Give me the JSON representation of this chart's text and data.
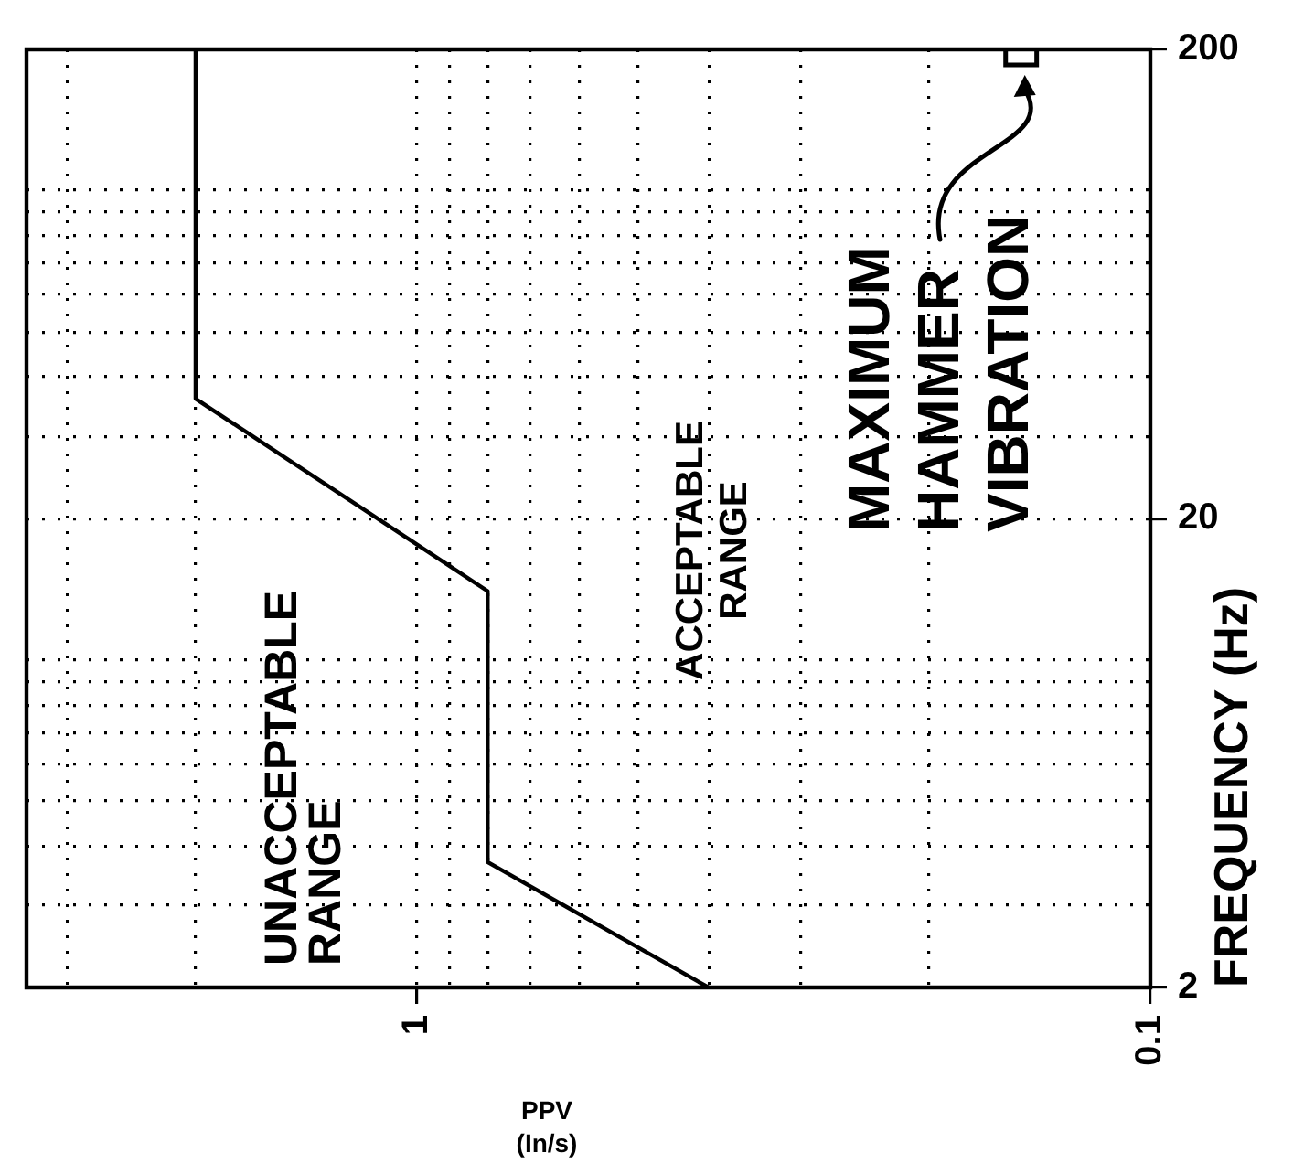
{
  "chart_data": {
    "type": "line",
    "xlabel": "PPV (In/s)",
    "ylabel": "FREQUENCY (Hz)",
    "x": [
      0.4,
      0.8,
      0.8,
      2.0,
      2.0
    ],
    "series": [
      {
        "type": "line",
        "color": "#000000",
        "marker": "none",
        "values": [
          2,
          3.7,
          14,
          36,
          200
        ]
      },
      {
        "type": "scatter",
        "color": "#000000",
        "marker": "square",
        "x": [
          0.15
        ],
        "values": [
          200
        ]
      }
    ],
    "xlim": [
      3.4,
      0.1
    ],
    "ylim": [
      2,
      200
    ],
    "yticks": [
      2,
      {
        "value": 3,
        "label": null
      },
      {
        "value": 4,
        "label": null
      },
      {
        "value": 5,
        "label": null
      },
      {
        "value": 6,
        "label": null
      },
      {
        "value": 7,
        "label": null
      },
      {
        "value": 8,
        "label": null
      },
      {
        "value": 9,
        "label": null
      },
      {
        "value": 10,
        "label": null
      },
      20,
      {
        "value": 30,
        "label": null
      },
      {
        "value": 40,
        "label": null
      },
      {
        "value": 50,
        "label": null
      },
      {
        "value": 60,
        "label": null
      },
      {
        "value": 70,
        "label": null
      },
      {
        "value": 80,
        "label": null
      },
      {
        "value": 90,
        "label": null
      },
      {
        "value": 100,
        "label": null
      },
      200
    ],
    "xticks": [
      0.1,
      {
        "value": 0.2,
        "label": null
      },
      {
        "value": 0.3,
        "label": null
      },
      {
        "value": 0.4,
        "label": null
      },
      {
        "value": 0.5,
        "label": null
      },
      {
        "value": 0.6,
        "label": null
      },
      {
        "value": 0.7,
        "label": null
      },
      {
        "value": 0.8,
        "label": null
      },
      {
        "value": 0.9,
        "label": null
      },
      1,
      {
        "value": 2,
        "label": null
      },
      {
        "value": 3,
        "label": null
      }
    ],
    "log": "xy",
    "grid": true,
    "annotations": [
      "UNACCEPTABLE RANGE",
      "ACCEPTABLE RANGE",
      {
        "text": "MAXIMUM HAMMER VIBRATION",
        "x": 0.15,
        "y": 200
      }
    ]
  }
}
